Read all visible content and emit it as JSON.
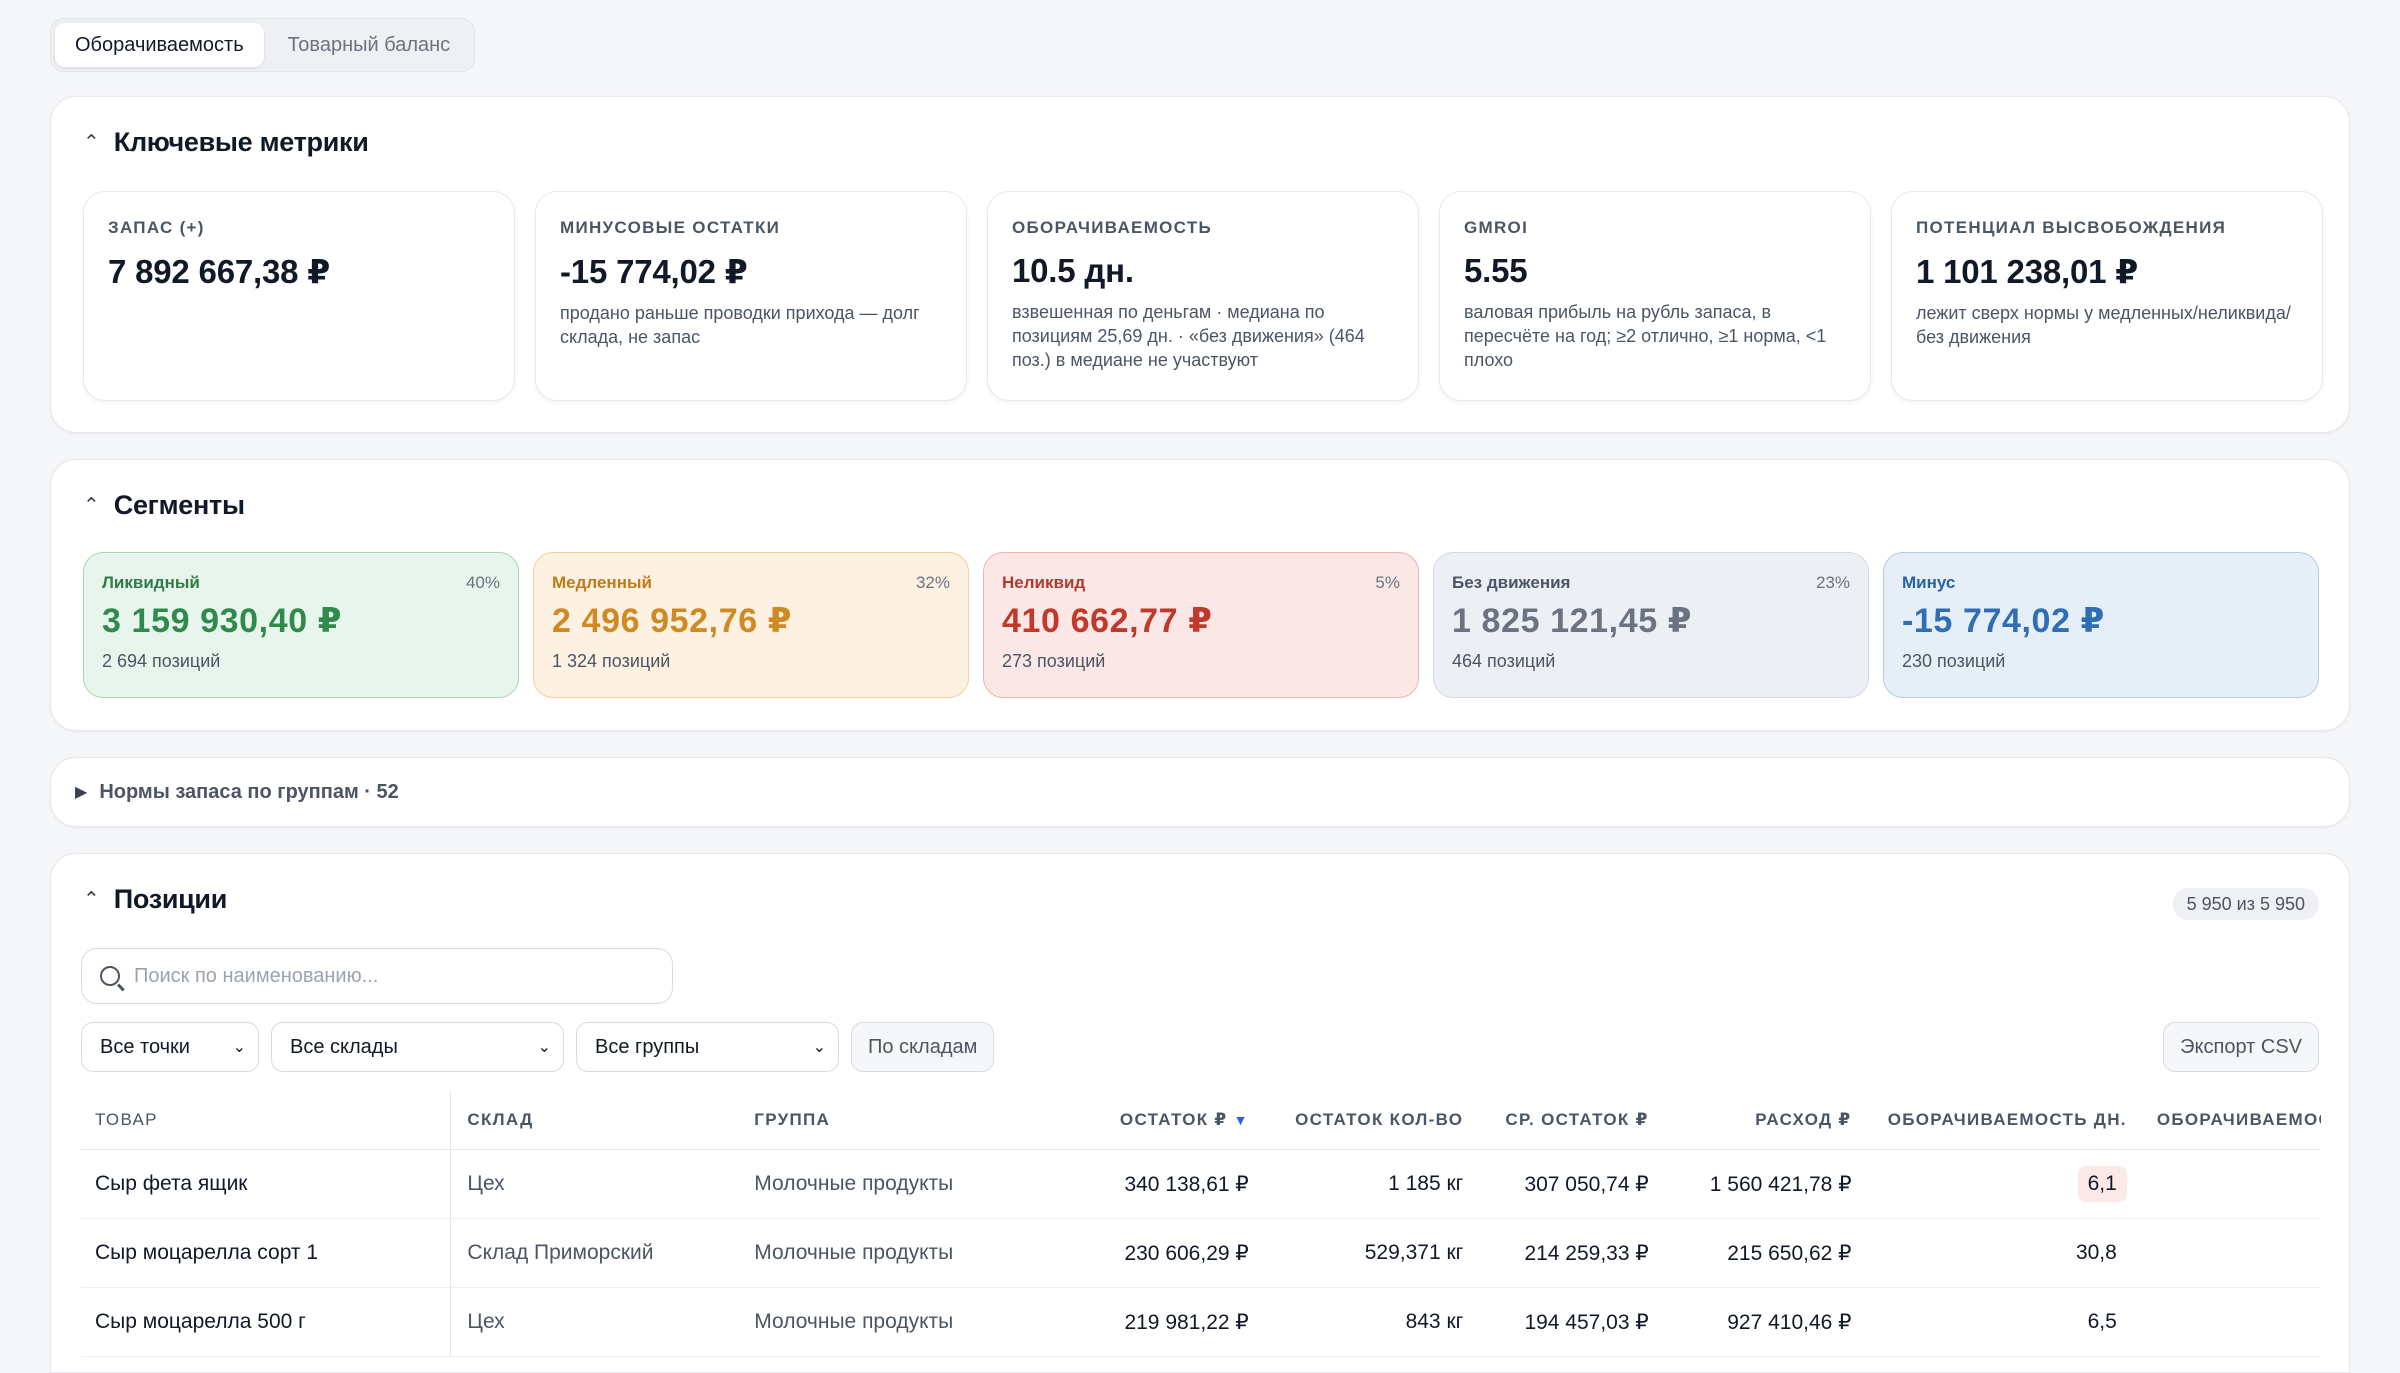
{
  "tabs": [
    {
      "label": "Оборачиваемость",
      "active": true
    },
    {
      "label": "Товарный баланс",
      "active": false
    }
  ],
  "metrics_section": {
    "title": "Ключевые метрики",
    "cards": [
      {
        "label": "ЗАПАС (+)",
        "value": "7 892 667,38 ₽",
        "desc": ""
      },
      {
        "label": "МИНУСОВЫЕ ОСТАТКИ",
        "value": "-15 774,02 ₽",
        "desc": "продано раньше проводки прихода — долг склада, не запас"
      },
      {
        "label": "ОБОРАЧИВАЕМОСТЬ",
        "value": "10.5 дн.",
        "desc": "взвешенная по деньгам · медиана по позициям 25,69 дн. · «без движения» (464 поз.) в медиане не участвуют"
      },
      {
        "label": "GMROI",
        "value": "5.55",
        "desc": "валовая прибыль на рубль запаса, в пересчёте на год; ≥2 отлично, ≥1 норма, <1 плохо"
      },
      {
        "label": "ПОТЕНЦИАЛ ВЫСВОБОЖДЕНИЯ",
        "value": "1 101 238,01 ₽",
        "desc": "лежит сверх нормы у медленных/неликвида/без движения"
      }
    ]
  },
  "segments_section": {
    "title": "Сегменты",
    "segments": [
      {
        "name": "Ликвидный",
        "pct": "40%",
        "value": "3 159 930,40 ₽",
        "count": "2 694 позиций",
        "bg": "#e8f5ec",
        "border": "#a7d8b5",
        "name_color": "#2f7d46",
        "value_color": "#2f8a4c"
      },
      {
        "name": "Медленный",
        "pct": "32%",
        "value": "2 496 952,76 ₽",
        "count": "1 324 позиций",
        "bg": "#fdf1e2",
        "border": "#f3cf9f",
        "name_color": "#c07a18",
        "value_color": "#d08a24"
      },
      {
        "name": "Неликвид",
        "pct": "5%",
        "value": "410 662,77 ₽",
        "count": "273 позиций",
        "bg": "#fbe8e6",
        "border": "#eeb3ad",
        "name_color": "#b23a30",
        "value_color": "#c0392b"
      },
      {
        "name": "Без движения",
        "pct": "23%",
        "value": "1 825 121,45 ₽",
        "count": "464 позиций",
        "bg": "#eceff4",
        "border": "#d4d9e1",
        "name_color": "#4b5563",
        "value_color": "#6b7280"
      },
      {
        "name": "Минус",
        "pct": "",
        "value": "-15 774,02 ₽",
        "count": "230 позиций",
        "bg": "#e6eef8",
        "border": "#b7cbe6",
        "name_color": "#2563a8",
        "value_color": "#2f6db5"
      }
    ]
  },
  "norms": {
    "label": "Нормы запаса по группам · 52"
  },
  "positions": {
    "title": "Позиции",
    "count_badge": "5 950 из 5 950",
    "search_placeholder": "Поиск по наименованию...",
    "filters": {
      "points": "Все точки",
      "warehouses": "Все склады",
      "groups": "Все группы",
      "by_warehouse": "По складам"
    },
    "export_label": "Экспорт CSV",
    "columns": [
      "ТОВАР",
      "СКЛАД",
      "ГРУППА",
      "ОСТАТОК ₽",
      "ОСТАТОК КОЛ-ВО",
      "СР. ОСТАТОК ₽",
      "РАСХОД ₽",
      "ОБОРАЧИВАЕМОСТЬ ДН.",
      "ОБОРАЧИВАЕМОСТ"
    ],
    "sort_indicator": "▼",
    "rows": [
      {
        "item": "Сыр фета ящик",
        "warehouse": "Цех",
        "group": "Молочные продукты",
        "stock_rub": "340 138,61 ₽",
        "stock_qty": "1 185 кг",
        "avg_stock": "307 050,74 ₽",
        "expense": "1 560 421,78 ₽",
        "turnover": "6,1",
        "highlight": true
      },
      {
        "item": "Сыр моцарелла сорт 1",
        "warehouse": "Склад Приморский",
        "group": "Молочные продукты",
        "stock_rub": "230 606,29 ₽",
        "stock_qty": "529,371 кг",
        "avg_stock": "214 259,33 ₽",
        "expense": "215 650,62 ₽",
        "turnover": "30,8",
        "highlight": false
      },
      {
        "item": "Сыр моцарелла 500 г",
        "warehouse": "Цех",
        "group": "Молочные продукты",
        "stock_rub": "219 981,22 ₽",
        "stock_qty": "843 кг",
        "avg_stock": "194 457,03 ₽",
        "expense": "927 410,46 ₽",
        "turnover": "6,5",
        "highlight": false
      }
    ]
  }
}
